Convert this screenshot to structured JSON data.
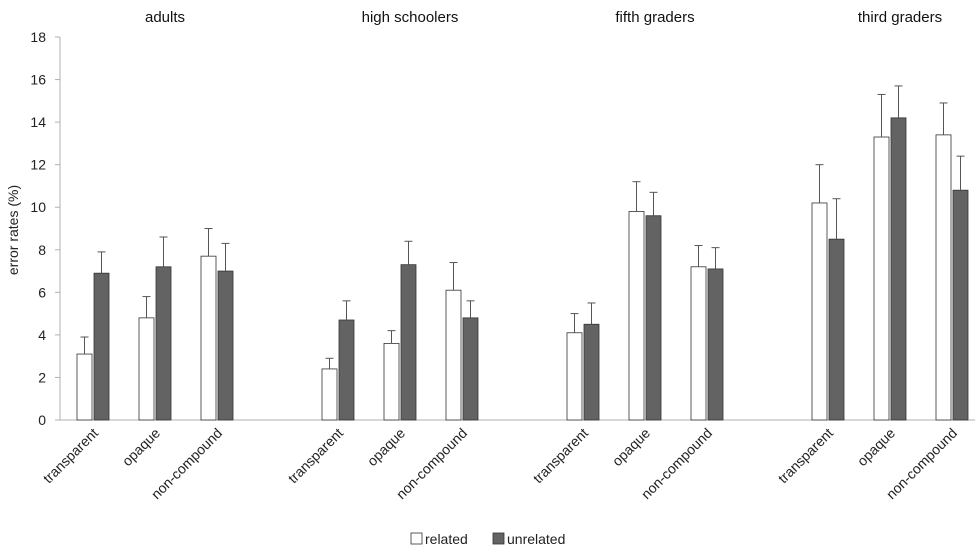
{
  "chart_data": {
    "type": "bar",
    "ylabel": "error rates (%)",
    "ylim": [
      0,
      18
    ],
    "yticks": [
      0,
      2,
      4,
      6,
      8,
      10,
      12,
      14,
      16,
      18
    ],
    "grid": false,
    "legend_position": "bottom",
    "colors": {
      "related": "#ffffff",
      "unrelated": "#636363",
      "axis": "#b0b0b0",
      "bar_stroke": "#333333"
    },
    "categories": [
      "transparent",
      "opaque",
      "non-compound"
    ],
    "series_names": [
      "related",
      "unrelated"
    ],
    "groups": [
      {
        "title": "adults",
        "values": {
          "related": [
            3.1,
            4.8,
            7.7
          ],
          "unrelated": [
            6.9,
            7.2,
            7.0
          ]
        },
        "errors": {
          "related": [
            0.8,
            1.0,
            1.3
          ],
          "unrelated": [
            1.0,
            1.4,
            1.3
          ]
        }
      },
      {
        "title": "high schoolers",
        "values": {
          "related": [
            2.4,
            3.6,
            6.1
          ],
          "unrelated": [
            4.7,
            7.3,
            4.8
          ]
        },
        "errors": {
          "related": [
            0.5,
            0.6,
            1.3
          ],
          "unrelated": [
            0.9,
            1.1,
            0.8
          ]
        }
      },
      {
        "title": "fifth graders",
        "values": {
          "related": [
            4.1,
            9.8,
            7.2
          ],
          "unrelated": [
            4.5,
            9.6,
            7.1
          ]
        },
        "errors": {
          "related": [
            0.9,
            1.4,
            1.0
          ],
          "unrelated": [
            1.0,
            1.1,
            1.0
          ]
        }
      },
      {
        "title": "third graders",
        "values": {
          "related": [
            10.2,
            13.3,
            13.4
          ],
          "unrelated": [
            8.5,
            14.2,
            10.8
          ]
        },
        "errors": {
          "related": [
            1.8,
            2.0,
            1.5
          ],
          "unrelated": [
            1.9,
            1.5,
            1.6
          ]
        }
      }
    ]
  }
}
